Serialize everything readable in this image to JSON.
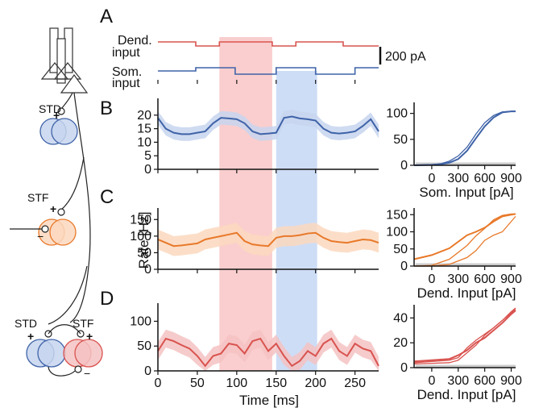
{
  "panel_labels": [
    "A",
    "B",
    "C",
    "D"
  ],
  "circuit": {
    "label_std_top": "STD",
    "label_stf_mid": "STF",
    "label_std_bottom": "STD",
    "label_stf_bottom": "STF",
    "plus": "+",
    "minus": "−",
    "colors": {
      "blue": "#3f63a8",
      "blue_fill": "#c7d5ee",
      "orange": "#e8792a",
      "orange_fill": "#fbd8be",
      "red": "#d9534f",
      "red_fill": "#f4c2c2"
    }
  },
  "inputs": {
    "dend_label_1": "Dend.",
    "dend_label_2": "input",
    "som_label_1": "Som.",
    "som_label_2": "input",
    "scale_label": "200 pA",
    "dend_color": "#d9534f",
    "som_color": "#3f63a8"
  },
  "shading": {
    "red_band": [
      78,
      145
    ],
    "blue_band": [
      150,
      202
    ],
    "red_color": "#f9c9c9",
    "blue_color": "#c9d9f5"
  },
  "x_axis": {
    "label": "Time [ms]",
    "ticks": [
      "0",
      "50",
      "100",
      "150",
      "200",
      "250"
    ],
    "range": [
      0,
      280
    ]
  },
  "shared_ylabel": "Rate [Hz]",
  "chart_data": [
    {
      "id": "B-trace",
      "type": "line",
      "ylim": [
        0,
        25
      ],
      "yticks": [
        "0",
        "5",
        "10",
        "15",
        "20"
      ],
      "color": "#3f63a8",
      "band_color": "#c7d5ee",
      "x": [
        0,
        10,
        20,
        30,
        40,
        50,
        60,
        70,
        80,
        90,
        100,
        110,
        120,
        130,
        140,
        150,
        160,
        170,
        180,
        190,
        200,
        210,
        220,
        230,
        240,
        250,
        260,
        270,
        280
      ],
      "y": [
        19,
        15,
        13.5,
        13,
        13,
        13.5,
        14,
        17,
        19,
        18.8,
        18.5,
        17,
        14,
        13,
        13.2,
        13.5,
        19,
        19.5,
        18.8,
        18.5,
        18,
        15,
        13.5,
        13.2,
        13.5,
        14,
        16,
        18.5,
        14
      ],
      "band_half_width": 2.5
    },
    {
      "id": "B-curve",
      "type": "line",
      "xlabel": "Som. Input [pA]",
      "xticks": [
        "0",
        "300",
        "600",
        "900"
      ],
      "xlim": [
        -200,
        950
      ],
      "ylim": [
        0,
        115
      ],
      "yticks": [
        "0",
        "50",
        "100"
      ],
      "color": "#3f63a8",
      "series": [
        {
          "x": [
            -200,
            0,
            100,
            200,
            300,
            400,
            500,
            600,
            700,
            800,
            900,
            950
          ],
          "y": [
            0,
            1,
            2,
            5,
            12,
            28,
            52,
            75,
            92,
            102,
            104,
            104
          ]
        },
        {
          "x": [
            -200,
            0,
            100,
            200,
            300,
            400,
            500,
            600,
            700,
            800,
            900,
            950
          ],
          "y": [
            0,
            1,
            3,
            8,
            18,
            35,
            60,
            82,
            96,
            103,
            104,
            104
          ]
        }
      ]
    },
    {
      "id": "C-trace",
      "type": "line",
      "ylim": [
        0,
        175
      ],
      "yticks": [
        "0",
        "50",
        "100",
        "150"
      ],
      "color": "#e8792a",
      "band_color": "#fbd8be",
      "x": [
        0,
        10,
        20,
        30,
        40,
        50,
        60,
        70,
        80,
        90,
        100,
        110,
        120,
        130,
        140,
        150,
        160,
        170,
        180,
        190,
        200,
        210,
        220,
        230,
        240,
        250,
        260,
        270,
        280
      ],
      "y": [
        90,
        80,
        70,
        72,
        75,
        78,
        90,
        95,
        100,
        105,
        110,
        85,
        75,
        72,
        70,
        95,
        100,
        100,
        103,
        108,
        110,
        95,
        85,
        82,
        80,
        85,
        90,
        88,
        80
      ],
      "band_half_width": 30
    },
    {
      "id": "C-curve",
      "type": "line",
      "xlabel": "Dend. Input [pA]",
      "xticks": [
        "0",
        "300",
        "600",
        "900"
      ],
      "xlim": [
        -200,
        950
      ],
      "ylim": [
        0,
        160
      ],
      "yticks": [
        "0",
        "50",
        "100",
        "150"
      ],
      "color": "#e8792a",
      "series": [
        {
          "x": [
            -200,
            0,
            200,
            400,
            500,
            600,
            700,
            800,
            900,
            950
          ],
          "y": [
            20,
            32,
            52,
            90,
            100,
            112,
            130,
            145,
            150,
            152
          ]
        },
        {
          "x": [
            -200,
            0,
            200,
            400,
            500,
            600,
            700,
            800,
            900,
            950
          ],
          "y": [
            0,
            2,
            20,
            60,
            88,
            110,
            135,
            148,
            152,
            152
          ]
        },
        {
          "x": [
            -200,
            0,
            200,
            400,
            500,
            600,
            700,
            800,
            900,
            950
          ],
          "y": [
            0,
            0,
            5,
            25,
            45,
            75,
            90,
            100,
            130,
            145
          ]
        }
      ]
    },
    {
      "id": "D-trace",
      "type": "line",
      "ylim": [
        0,
        130
      ],
      "yticks": [
        "0",
        "50",
        "100"
      ],
      "color": "#d9534f",
      "band_color": "#f4c2c2",
      "x": [
        0,
        10,
        20,
        30,
        40,
        50,
        60,
        70,
        80,
        90,
        100,
        110,
        120,
        130,
        140,
        150,
        160,
        170,
        180,
        190,
        200,
        210,
        220,
        230,
        240,
        250,
        260,
        270,
        280
      ],
      "y": [
        40,
        65,
        60,
        52,
        45,
        30,
        10,
        30,
        35,
        55,
        52,
        35,
        60,
        65,
        40,
        55,
        30,
        10,
        20,
        40,
        30,
        55,
        65,
        40,
        30,
        55,
        45,
        40,
        10
      ],
      "band_half_width": 18
    },
    {
      "id": "D-curve",
      "type": "line",
      "xlabel": "Dend. Input [pA]",
      "xticks": [
        "0",
        "300",
        "600",
        "900"
      ],
      "xlim": [
        -200,
        950
      ],
      "ylim": [
        0,
        48
      ],
      "yticks": [
        "0",
        "20",
        "40"
      ],
      "color": "#d9534f",
      "series": [
        {
          "x": [
            -200,
            0,
            200,
            300,
            400,
            500,
            600,
            700,
            800,
            900,
            950
          ],
          "y": [
            5,
            6,
            7,
            10,
            14,
            20,
            24,
            30,
            36,
            43,
            46
          ]
        },
        {
          "x": [
            -200,
            0,
            200,
            300,
            400,
            500,
            600,
            700,
            800,
            900,
            950
          ],
          "y": [
            4,
            5,
            6,
            8,
            16,
            22,
            27,
            32,
            38,
            44,
            47
          ]
        },
        {
          "x": [
            -200,
            0,
            200,
            300,
            400,
            500,
            600,
            700,
            800,
            900,
            950
          ],
          "y": [
            3,
            3.5,
            4,
            6,
            12,
            18,
            26,
            32,
            38,
            45,
            48
          ]
        }
      ]
    }
  ]
}
